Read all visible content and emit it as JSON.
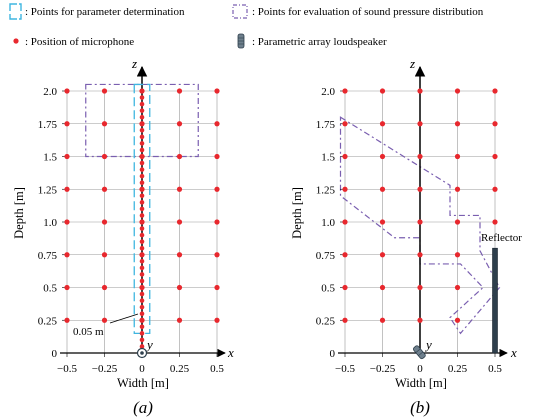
{
  "legend": {
    "parameter_points": ": Points for parameter determination",
    "evaluation_points": ": Points for evaluation of sound pressure distribution",
    "microphone": ": Position of microphone",
    "loudspeaker": ": Parametric array loudspeaker"
  },
  "colors": {
    "microphone": "#e8282e",
    "parameter_box": "#3fb6e0",
    "evaluation_box": "#7a5fb0",
    "grid": "#999999",
    "reflector": "#2e3f4c"
  },
  "panels": [
    {
      "id": "a",
      "label": "(a)",
      "xlabel": "Width [m]",
      "ylabel": "Depth [m]",
      "axis_z": "z",
      "axis_x": "x",
      "axis_y": "y",
      "annotation": "0.05 m",
      "x_ticks": [
        "−0.5",
        "−0.25",
        "0",
        "0.25",
        "0.5"
      ],
      "y_ticks": [
        "0",
        "0.25",
        "0.5",
        "0.75",
        "1.0",
        "1.25",
        "1.5",
        "1.75",
        "2.0"
      ]
    },
    {
      "id": "b",
      "label": "(b)",
      "xlabel": "Width [m]",
      "ylabel": "Depth [m]",
      "axis_z": "z",
      "axis_x": "x",
      "axis_y": "y",
      "reflector_label": "Reflector",
      "x_ticks": [
        "−0.5",
        "−0.25",
        "0",
        "0.25",
        "0.5"
      ],
      "y_ticks": [
        "0",
        "0.25",
        "0.5",
        "0.75",
        "1.0",
        "1.25",
        "1.5",
        "1.75",
        "2.0"
      ]
    }
  ],
  "mic_grid": {
    "x_m": [
      -0.5,
      -0.25,
      0,
      0.25,
      0.5
    ],
    "depth_m": [
      0.25,
      0.5,
      0.75,
      1.0,
      1.25,
      1.5,
      1.75,
      2.0
    ]
  },
  "panel_a": {
    "dense_mic_spacing_m": 0.05,
    "parameter_region": {
      "x_m": [
        -0.025,
        0.025
      ],
      "depth_m": [
        0.15,
        2.05
      ]
    },
    "evaluation_region": {
      "x_m": [
        -0.375,
        0.375
      ],
      "depth_m": [
        1.5,
        2.05
      ]
    }
  },
  "panel_b": {
    "evaluation_polygon_m": [
      [
        -0.53,
        1.8
      ],
      [
        0.2,
        1.28
      ],
      [
        0.2,
        1.05
      ],
      [
        0.4,
        1.05
      ],
      [
        0.4,
        0.78
      ],
      [
        0.53,
        0.5
      ],
      [
        0.27,
        0.15
      ],
      [
        0.2,
        0.27
      ],
      [
        0.42,
        0.5
      ],
      [
        0.27,
        0.68
      ],
      [
        0.0,
        0.68
      ],
      [
        0.0,
        0.88
      ],
      [
        -0.17,
        0.88
      ],
      [
        -0.53,
        1.2
      ]
    ],
    "reflector": {
      "x_m": 0.5,
      "depth_m": [
        0,
        0.8
      ]
    }
  }
}
